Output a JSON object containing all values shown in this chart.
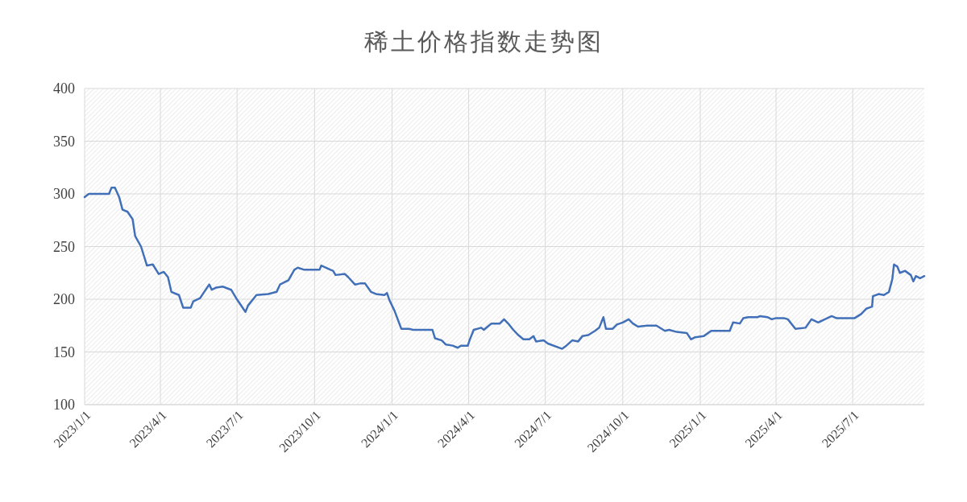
{
  "chart_data": {
    "type": "line",
    "title": "稀土价格指数走势图",
    "x": [
      "2023-01-01",
      "2023-01-06",
      "2023-01-11",
      "2023-01-30",
      "2023-02-02",
      "2023-02-06",
      "2023-02-11",
      "2023-02-15",
      "2023-02-21",
      "2023-02-27",
      "2023-03-02",
      "2023-03-09",
      "2023-03-16",
      "2023-03-23",
      "2023-03-30",
      "2023-04-05",
      "2023-04-10",
      "2023-04-14",
      "2023-04-23",
      "2023-04-28",
      "2023-05-07",
      "2023-05-10",
      "2023-05-18",
      "2023-05-23",
      "2023-05-29",
      "2023-06-01",
      "2023-06-06",
      "2023-06-14",
      "2023-06-24",
      "2023-06-30",
      "2023-07-11",
      "2023-07-14",
      "2023-07-24",
      "2023-08-07",
      "2023-08-17",
      "2023-08-21",
      "2023-08-31",
      "2023-09-07",
      "2023-09-11",
      "2023-09-19",
      "2023-10-07",
      "2023-10-09",
      "2023-10-20",
      "2023-10-23",
      "2023-10-26",
      "2023-11-06",
      "2023-11-10",
      "2023-11-18",
      "2023-11-24",
      "2023-11-30",
      "2023-12-07",
      "2023-12-13",
      "2023-12-23",
      "2023-12-26",
      "2023-12-29",
      "2024-01-04",
      "2024-01-12",
      "2024-01-21",
      "2024-01-26",
      "2024-02-18",
      "2024-02-21",
      "2024-02-29",
      "2024-03-05",
      "2024-03-13",
      "2024-03-19",
      "2024-03-23",
      "2024-03-31",
      "2024-04-02",
      "2024-04-07",
      "2024-04-16",
      "2024-04-19",
      "2024-04-25",
      "2024-04-28",
      "2024-05-08",
      "2024-05-13",
      "2024-05-19",
      "2024-05-24",
      "2024-05-30",
      "2024-06-05",
      "2024-06-12",
      "2024-06-17",
      "2024-06-20",
      "2024-06-29",
      "2024-07-04",
      "2024-07-21",
      "2024-07-26",
      "2024-08-02",
      "2024-08-09",
      "2024-08-14",
      "2024-08-21",
      "2024-08-29",
      "2024-09-03",
      "2024-09-08",
      "2024-09-11",
      "2024-09-19",
      "2024-09-24",
      "2024-10-01",
      "2024-10-08",
      "2024-10-13",
      "2024-10-19",
      "2024-10-30",
      "2024-11-10",
      "2024-11-20",
      "2024-11-25",
      "2024-12-04",
      "2024-12-16",
      "2024-12-21",
      "2024-12-26",
      "2025-01-05",
      "2025-01-14",
      "2025-02-05",
      "2025-02-09",
      "2025-02-17",
      "2025-02-21",
      "2025-02-27",
      "2025-03-10",
      "2025-03-13",
      "2025-03-22",
      "2025-03-27",
      "2025-03-31",
      "2025-04-11",
      "2025-04-15",
      "2025-04-24",
      "2025-05-06",
      "2025-05-13",
      "2025-05-21",
      "2025-05-29",
      "2025-06-06",
      "2025-06-12",
      "2025-07-03",
      "2025-07-11",
      "2025-07-17",
      "2025-07-24",
      "2025-07-25",
      "2025-08-01",
      "2025-08-07",
      "2025-08-13",
      "2025-08-17",
      "2025-08-19",
      "2025-08-23",
      "2025-08-26",
      "2025-09-01",
      "2025-09-08",
      "2025-09-11",
      "2025-09-14",
      "2025-09-19",
      "2025-09-24"
    ],
    "series": [
      {
        "color": "#4270b8",
        "values": [
          297,
          300,
          300,
          300,
          306,
          306,
          297,
          285,
          283,
          276,
          260,
          250,
          232,
          233,
          224,
          226,
          221,
          207,
          204,
          192,
          192,
          198,
          201,
          207,
          214,
          209,
          211,
          212,
          209,
          201,
          188,
          194,
          204,
          205,
          207,
          214,
          218,
          228,
          230,
          228,
          228,
          232,
          228,
          227,
          223,
          224,
          221,
          214,
          215,
          215,
          207,
          205,
          204,
          206,
          199,
          189,
          172,
          172,
          171,
          171,
          163,
          161,
          157,
          156,
          154,
          156,
          156,
          161,
          171,
          173,
          171,
          175,
          177,
          177,
          181,
          176,
          171,
          166,
          162,
          162,
          165,
          160,
          161,
          158,
          153,
          156,
          161,
          160,
          165,
          166,
          170,
          173,
          183,
          172,
          172,
          176,
          178,
          181,
          177,
          174,
          175,
          175,
          170,
          171,
          169,
          168,
          162,
          164,
          165,
          170,
          170,
          178,
          177,
          182,
          183,
          183,
          184,
          183,
          181,
          182,
          182,
          181,
          172,
          173,
          181,
          178,
          181,
          184,
          182,
          182,
          186,
          191,
          193,
          203,
          205,
          204,
          207,
          219,
          233,
          231,
          225,
          227,
          223,
          217,
          222,
          220,
          222
        ]
      }
    ],
    "xlim": [
      "2023-01-01",
      "2025-09-24"
    ],
    "xticks": [
      {
        "value": "2023-01-01",
        "label": "2023/1/1"
      },
      {
        "value": "2023-04-01",
        "label": "2023/4/1"
      },
      {
        "value": "2023-07-01",
        "label": "2023/7/1"
      },
      {
        "value": "2023-10-01",
        "label": "2023/10/1"
      },
      {
        "value": "2024-01-01",
        "label": "2024/1/1"
      },
      {
        "value": "2024-04-01",
        "label": "2024/4/1"
      },
      {
        "value": "2024-07-01",
        "label": "2024/7/1"
      },
      {
        "value": "2024-10-01",
        "label": "2024/10/1"
      },
      {
        "value": "2025-01-01",
        "label": "2025/1/1"
      },
      {
        "value": "2025-04-01",
        "label": "2025/4/1"
      },
      {
        "value": "2025-07-01",
        "label": "2025/7/1"
      }
    ],
    "ylim": [
      100,
      400
    ],
    "yticks": [
      100,
      150,
      200,
      250,
      300,
      350,
      400
    ],
    "grid": true,
    "marker": "none",
    "line_style": "solid"
  }
}
